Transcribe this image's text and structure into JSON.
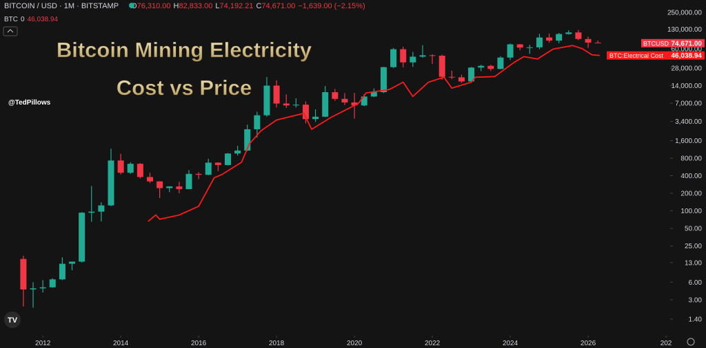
{
  "header": {
    "symbol": "BITCOIN / USD · 1M · BITSTAMP",
    "ohlc": [
      {
        "key": "O",
        "value": "76,310.00"
      },
      {
        "key": "H",
        "value": "82,833.00"
      },
      {
        "key": "L",
        "value": "74,192.21"
      },
      {
        "key": "C",
        "value": "74,671.00"
      }
    ],
    "change": "−1,639.00 (−2.15%)",
    "indicator": {
      "name": "BTC",
      "param": "0",
      "value": "46,038.94"
    }
  },
  "chart_data": {
    "type": "candlestick",
    "title": [
      "Bitcoin Mining Electricity",
      "Cost vs Price"
    ],
    "author": "@TedPillows",
    "log_scale": true,
    "grid": false,
    "xlim": [
      2010.9,
      2028.07
    ],
    "xticks": [
      2012,
      2014,
      2016,
      2018,
      2020,
      2022,
      2024,
      2026,
      {
        "value": 2028,
        "label": "202"
      }
    ],
    "ylim": [
      0.69,
      410000
    ],
    "yticks": [
      {
        "value": 250000,
        "label": "250,000.00"
      },
      {
        "value": 130000,
        "label": "130,000.00"
      },
      {
        "value": 60000,
        "label": "60,000.00"
      },
      {
        "value": 28000,
        "label": "28,000.00"
      },
      {
        "value": 14000,
        "label": "14,000.00"
      },
      {
        "value": 7000,
        "label": "7,000.00"
      },
      {
        "value": 3400,
        "label": "3,400.00"
      },
      {
        "value": 1600,
        "label": "1,600.00"
      },
      {
        "value": 800,
        "label": "800.00"
      },
      {
        "value": 400,
        "label": "400.00"
      },
      {
        "value": 200,
        "label": "200.00"
      },
      {
        "value": 100,
        "label": "100.00"
      },
      {
        "value": 50,
        "label": "50.00"
      },
      {
        "value": 25,
        "label": "25.00"
      },
      {
        "value": 13,
        "label": "13.00"
      },
      {
        "value": 6,
        "label": "6.00"
      },
      {
        "value": 3,
        "label": "3.00"
      },
      {
        "value": 1.4,
        "label": "1.40"
      }
    ],
    "candles": {
      "name": "BTCUSD",
      "up_color": "#22ab94",
      "down_color": "#f23645",
      "last_label": "74,671.00",
      "x": [
        2011.5,
        2011.75,
        2012.0,
        2012.25,
        2012.5,
        2012.75,
        2013.0,
        2013.25,
        2013.5,
        2013.75,
        2014.0,
        2014.25,
        2014.5,
        2014.75,
        2015.0,
        2015.25,
        2015.5,
        2015.75,
        2016.0,
        2016.25,
        2016.5,
        2016.75,
        2017.0,
        2017.25,
        2017.5,
        2017.75,
        2018.0,
        2018.25,
        2018.5,
        2018.75,
        2019.0,
        2019.25,
        2019.5,
        2019.75,
        2020.0,
        2020.25,
        2020.5,
        2020.75,
        2021.0,
        2021.25,
        2021.5,
        2021.75,
        2022.0,
        2022.25,
        2022.5,
        2022.75,
        2023.0,
        2023.25,
        2023.5,
        2023.75,
        2024.0,
        2024.25,
        2024.5,
        2024.75,
        2025.0,
        2025.25,
        2025.5,
        2025.75,
        2026.0,
        2026.25
      ],
      "open": [
        15,
        4.5,
        4.7,
        4.9,
        6.7,
        12.4,
        13.5,
        93,
        97,
        124,
        730,
        450,
        640,
        380,
        320,
        245,
        262,
        236,
        430,
        415,
        670,
        610,
        960,
        1080,
        2500,
        4340,
        14000,
        6900,
        6400,
        6600,
        3740,
        4100,
        10800,
        8300,
        7200,
        6400,
        9100,
        10800,
        29000,
        58800,
        35000,
        43800,
        46300,
        45500,
        19800,
        19400,
        16500,
        28500,
        30500,
        27000,
        42300,
        71300,
        62700,
        63300,
        93400,
        82500,
        107100,
        114000,
        88000,
        76310
      ],
      "high": [
        17,
        6,
        6.5,
        7,
        16,
        13.5,
        95,
        266,
        140,
        1160,
        950,
        680,
        660,
        450,
        320,
        265,
        315,
        500,
        460,
        780,
        680,
        980,
        1300,
        3000,
        5000,
        19700,
        17200,
        9900,
        8500,
        7500,
        5500,
        13800,
        12300,
        10400,
        10500,
        10000,
        12500,
        29300,
        61800,
        64900,
        52900,
        69000,
        48200,
        47500,
        25200,
        21500,
        29200,
        31800,
        31800,
        44700,
        73800,
        72000,
        70000,
        108000,
        109000,
        111900,
        124000,
        126000,
        97000,
        82833
      ],
      "low": [
        2.3,
        2.2,
        4,
        4.8,
        6.5,
        9.6,
        13,
        65,
        66,
        120,
        420,
        430,
        360,
        300,
        165,
        210,
        200,
        235,
        350,
        410,
        480,
        600,
        890,
        1060,
        1800,
        4100,
        5900,
        5800,
        5900,
        3150,
        3350,
        4050,
        7700,
        6500,
        3800,
        6200,
        8900,
        10400,
        28000,
        28800,
        29300,
        42000,
        32900,
        17600,
        18100,
        15500,
        16500,
        24800,
        24900,
        26600,
        38500,
        56500,
        49000,
        58900,
        76600,
        74600,
        105000,
        84000,
        62000,
        74192
      ],
      "close": [
        4.5,
        4.7,
        4.9,
        6.7,
        12.4,
        13.5,
        93,
        97,
        124,
        730,
        450,
        640,
        380,
        320,
        245,
        262,
        236,
        430,
        415,
        670,
        610,
        960,
        1080,
        2500,
        4340,
        14000,
        6900,
        6400,
        6600,
        3740,
        4100,
        10800,
        8300,
        7200,
        6400,
        9100,
        10800,
        29000,
        58800,
        35000,
        43800,
        46300,
        45500,
        19800,
        19400,
        16500,
        28500,
        30500,
        27000,
        42300,
        71300,
        62700,
        63300,
        93400,
        82500,
        107100,
        114000,
        88000,
        76310,
        74671
      ]
    },
    "series": [
      {
        "name": "BTC:Electrical Cost",
        "color": "#ff1a1a",
        "last_label": "46,038.94",
        "x": [
          2014.7,
          2014.9,
          2015.0,
          2015.5,
          2016.0,
          2016.4,
          2016.6,
          2017.1,
          2017.3,
          2017.6,
          2018.0,
          2018.7,
          2018.9,
          2019.4,
          2020.1,
          2020.3,
          2020.9,
          2021.25,
          2021.5,
          2021.9,
          2022.3,
          2022.5,
          2023.0,
          2023.1,
          2023.6,
          2024.1,
          2024.35,
          2024.7,
          2025.1,
          2025.6,
          2025.85,
          2026.1,
          2026.3
        ],
        "values": [
          66,
          85,
          72,
          85,
          120,
          370,
          420,
          680,
          1400,
          2350,
          3600,
          4700,
          2500,
          4000,
          6900,
          10500,
          12000,
          16000,
          9100,
          16000,
          19500,
          12700,
          16000,
          19500,
          20000,
          35000,
          44000,
          40000,
          59000,
          68000,
          60000,
          47000,
          46038.94
        ]
      }
    ]
  }
}
